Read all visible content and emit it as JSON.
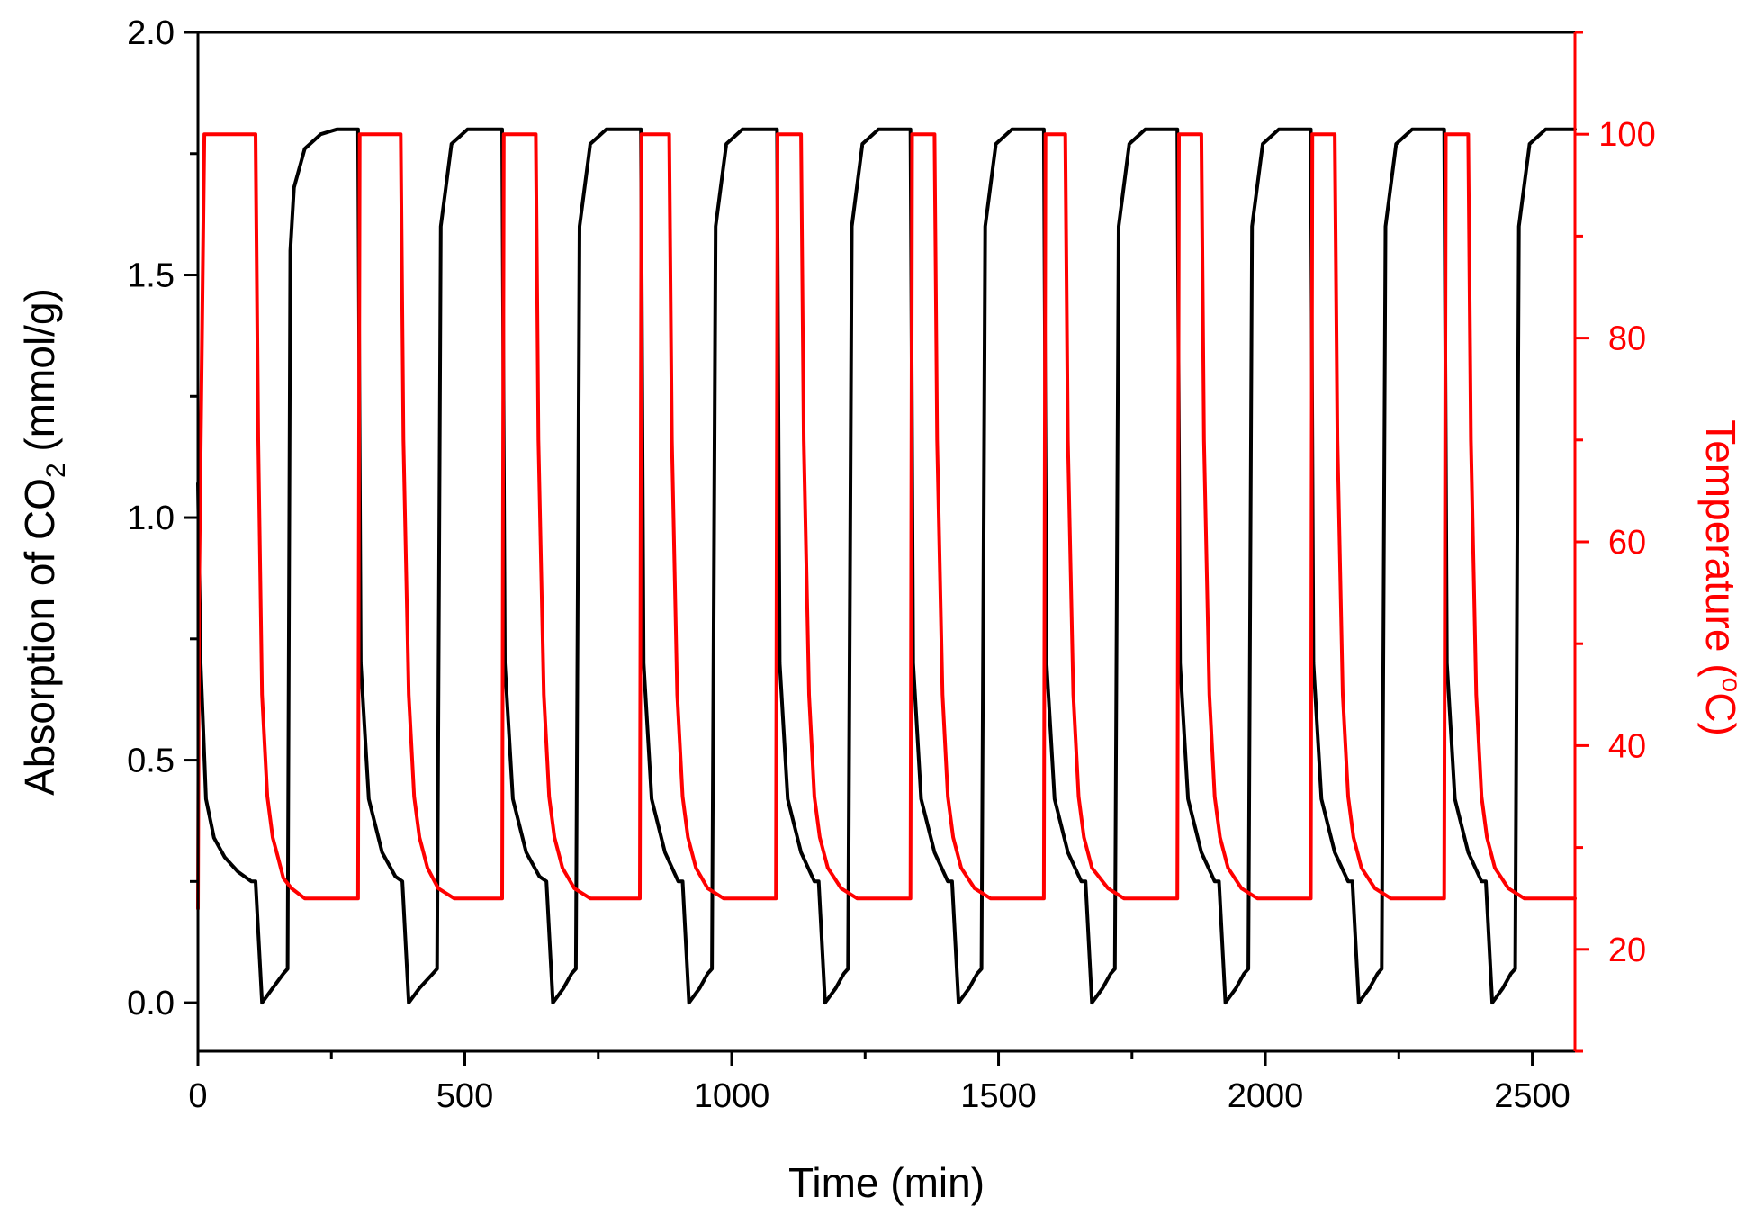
{
  "chart_data": {
    "type": "line",
    "title": "",
    "xlabel": "Time (min)",
    "xlim": [
      0,
      2580
    ],
    "x_ticks": [
      "0",
      "500",
      "1000",
      "1500",
      "2000",
      "2500"
    ],
    "ylabel_left": {
      "prefix": "Absorption of CO",
      "subscript": "2",
      "suffix": " (mmol/g)"
    },
    "ylim_left": [
      -0.1,
      2.0
    ],
    "y_ticks_left": [
      "0.0",
      "0.5",
      "1.0",
      "1.5",
      "2.0"
    ],
    "ylabel_right": {
      "prefix": "Temperature (",
      "superscript": "o",
      "suffix": "C)"
    },
    "ylim_right": [
      10,
      110
    ],
    "y_ticks_right": [
      "20",
      "40",
      "60",
      "80",
      "100"
    ],
    "grid": false,
    "legend": "none",
    "colors": {
      "absorption": "#000000",
      "temperature": "#ff0000"
    },
    "series": [
      {
        "axis": "left",
        "x": [
          0,
          5,
          15,
          30,
          50,
          75,
          100,
          108,
          120,
          140,
          160,
          168,
          173,
          180,
          200,
          230,
          260,
          300,
          305,
          320,
          345,
          370,
          383,
          395,
          415,
          440,
          448,
          455,
          475,
          505,
          535,
          570,
          575,
          590,
          615,
          640,
          653,
          665,
          685,
          700,
          708,
          715,
          735,
          765,
          795,
          830,
          835,
          850,
          875,
          900,
          908,
          920,
          940,
          955,
          963,
          970,
          990,
          1020,
          1050,
          1085,
          1090,
          1105,
          1130,
          1155,
          1163,
          1175,
          1195,
          1210,
          1218,
          1225,
          1245,
          1275,
          1305,
          1335,
          1340,
          1355,
          1380,
          1405,
          1413,
          1425,
          1445,
          1460,
          1468,
          1475,
          1495,
          1525,
          1555,
          1585,
          1590,
          1605,
          1630,
          1655,
          1663,
          1675,
          1695,
          1710,
          1718,
          1725,
          1745,
          1775,
          1805,
          1835,
          1840,
          1855,
          1880,
          1905,
          1913,
          1925,
          1945,
          1960,
          1968,
          1975,
          1995,
          2025,
          2055,
          2085,
          2090,
          2105,
          2130,
          2155,
          2163,
          2175,
          2195,
          2210,
          2218,
          2225,
          2245,
          2275,
          2305,
          2335,
          2340,
          2355,
          2380,
          2405,
          2413,
          2425,
          2445,
          2460,
          2468,
          2475,
          2495,
          2525,
          2555,
          2580
        ],
        "y": [
          1.07,
          0.7,
          0.42,
          0.34,
          0.3,
          0.27,
          0.25,
          0.25,
          0.0,
          0.03,
          0.06,
          0.07,
          1.55,
          1.68,
          1.76,
          1.79,
          1.8,
          1.8,
          0.7,
          0.42,
          0.31,
          0.26,
          0.25,
          0.0,
          0.03,
          0.06,
          0.07,
          1.6,
          1.77,
          1.8,
          1.8,
          1.8,
          0.7,
          0.42,
          0.31,
          0.26,
          0.25,
          0.0,
          0.03,
          0.06,
          0.07,
          1.6,
          1.77,
          1.8,
          1.8,
          1.8,
          0.7,
          0.42,
          0.31,
          0.25,
          0.25,
          0.0,
          0.03,
          0.06,
          0.07,
          1.6,
          1.77,
          1.8,
          1.8,
          1.8,
          0.7,
          0.42,
          0.31,
          0.25,
          0.25,
          0.0,
          0.03,
          0.06,
          0.07,
          1.6,
          1.77,
          1.8,
          1.8,
          1.8,
          0.7,
          0.42,
          0.31,
          0.25,
          0.25,
          0.0,
          0.03,
          0.06,
          0.07,
          1.6,
          1.77,
          1.8,
          1.8,
          1.8,
          0.7,
          0.42,
          0.31,
          0.25,
          0.25,
          0.0,
          0.03,
          0.06,
          0.07,
          1.6,
          1.77,
          1.8,
          1.8,
          1.8,
          0.7,
          0.42,
          0.31,
          0.25,
          0.25,
          0.0,
          0.03,
          0.06,
          0.07,
          1.6,
          1.77,
          1.8,
          1.8,
          1.8,
          0.7,
          0.42,
          0.31,
          0.25,
          0.25,
          0.0,
          0.03,
          0.06,
          0.07,
          1.6,
          1.77,
          1.8,
          1.8,
          1.8,
          0.7,
          0.42,
          0.31,
          0.25,
          0.25,
          0.0,
          0.03,
          0.06,
          0.07,
          1.6,
          1.77,
          1.8,
          1.8,
          1.8
        ]
      },
      {
        "axis": "right",
        "x": [
          0,
          2,
          12,
          20,
          108,
          113,
          120,
          130,
          140,
          150,
          160,
          175,
          200,
          230,
          260,
          300,
          303,
          315,
          380,
          385,
          395,
          405,
          415,
          430,
          450,
          480,
          520,
          560,
          570,
          573,
          585,
          633,
          638,
          648,
          658,
          668,
          683,
          705,
          735,
          775,
          820,
          828,
          831,
          843,
          883,
          888,
          898,
          908,
          918,
          933,
          955,
          985,
          1025,
          1070,
          1083,
          1086,
          1098,
          1130,
          1135,
          1145,
          1155,
          1165,
          1180,
          1205,
          1235,
          1275,
          1320,
          1335,
          1338,
          1350,
          1380,
          1385,
          1395,
          1405,
          1415,
          1430,
          1455,
          1485,
          1525,
          1570,
          1585,
          1588,
          1600,
          1625,
          1630,
          1640,
          1650,
          1660,
          1675,
          1705,
          1735,
          1775,
          1820,
          1835,
          1838,
          1850,
          1880,
          1885,
          1895,
          1905,
          1915,
          1930,
          1955,
          1985,
          2025,
          2070,
          2085,
          2088,
          2100,
          2130,
          2135,
          2145,
          2155,
          2165,
          2180,
          2205,
          2235,
          2275,
          2320,
          2335,
          2338,
          2350,
          2380,
          2385,
          2395,
          2405,
          2415,
          2430,
          2455,
          2485,
          2525,
          2580
        ],
        "y": [
          24,
          55,
          100,
          100,
          100,
          70,
          45,
          35,
          31,
          29,
          27,
          26,
          25,
          25,
          25,
          25,
          100,
          100,
          100,
          70,
          45,
          35,
          31,
          28,
          26,
          25,
          25,
          25,
          25,
          100,
          100,
          100,
          70,
          45,
          35,
          31,
          28,
          26,
          25,
          25,
          25,
          25,
          100,
          100,
          100,
          70,
          45,
          35,
          31,
          28,
          26,
          25,
          25,
          25,
          25,
          100,
          100,
          100,
          70,
          45,
          35,
          31,
          28,
          26,
          25,
          25,
          25,
          25,
          100,
          100,
          100,
          70,
          45,
          35,
          31,
          28,
          26,
          25,
          25,
          25,
          25,
          100,
          100,
          100,
          70,
          45,
          35,
          31,
          28,
          26,
          25,
          25,
          25,
          25,
          100,
          100,
          100,
          70,
          45,
          35,
          31,
          28,
          26,
          25,
          25,
          25,
          25,
          100,
          100,
          100,
          70,
          45,
          35,
          31,
          28,
          26,
          25,
          25,
          25,
          25,
          100,
          100,
          100,
          70,
          45,
          35,
          31,
          28,
          26,
          25,
          25,
          25
        ]
      }
    ]
  }
}
